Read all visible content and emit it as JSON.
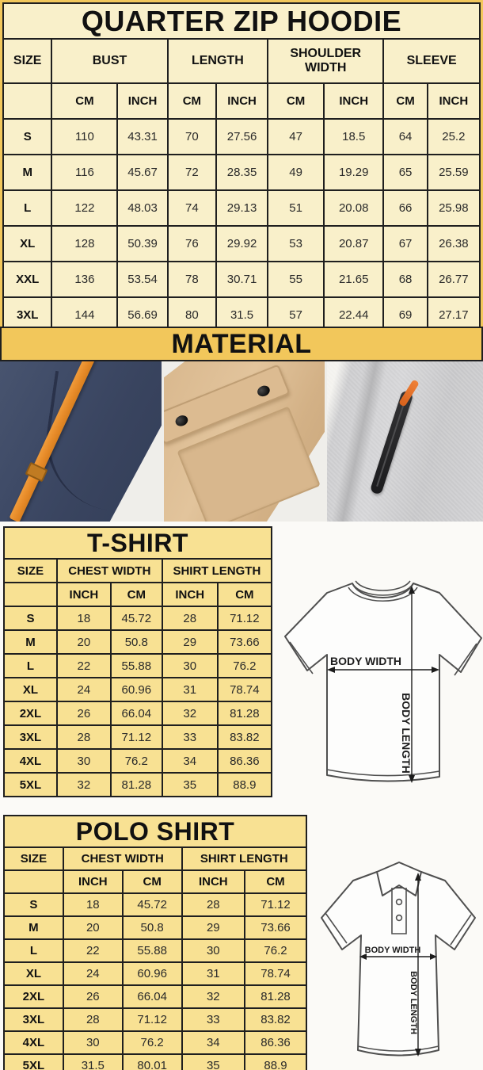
{
  "colors": {
    "gold": "#f2c75b",
    "cream": "#f9f0ca",
    "soft_yellow": "#f8e193",
    "border": "#1f1f1f",
    "text": "#1a1a1a"
  },
  "hoodie_chart": {
    "type": "table",
    "title": "QUARTER ZIP HOODIE",
    "size_header": "SIZE",
    "groups": [
      "BUST",
      "LENGTH",
      "SHOULDER WIDTH",
      "SLEEVE"
    ],
    "units": [
      "CM",
      "INCH",
      "CM",
      "INCH",
      "CM",
      "INCH",
      "CM",
      "INCH"
    ],
    "rows": [
      [
        "S",
        "110",
        "43.31",
        "70",
        "27.56",
        "47",
        "18.5",
        "64",
        "25.2"
      ],
      [
        "M",
        "116",
        "45.67",
        "72",
        "28.35",
        "49",
        "19.29",
        "65",
        "25.59"
      ],
      [
        "L",
        "122",
        "48.03",
        "74",
        "29.13",
        "51",
        "20.08",
        "66",
        "25.98"
      ],
      [
        "XL",
        "128",
        "50.39",
        "76",
        "29.92",
        "53",
        "20.87",
        "67",
        "26.38"
      ],
      [
        "XXL",
        "136",
        "53.54",
        "78",
        "30.71",
        "55",
        "21.65",
        "68",
        "26.77"
      ],
      [
        "3XL",
        "144",
        "56.69",
        "80",
        "31.5",
        "57",
        "22.44",
        "69",
        "27.17"
      ]
    ]
  },
  "material": {
    "title": "MATERIAL",
    "photos": [
      {
        "name": "navy-fleece-with-orange-drawstring"
      },
      {
        "name": "khaki-pocket-with-snap-buttons"
      },
      {
        "name": "gray-fleece-with-zipper"
      }
    ]
  },
  "tshirt_chart": {
    "type": "table",
    "title": "T-SHIRT",
    "size_header": "SIZE",
    "groups": [
      "CHEST WIDTH",
      "SHIRT LENGTH"
    ],
    "units": [
      "INCH",
      "CM",
      "INCH",
      "CM"
    ],
    "rows": [
      [
        "S",
        "18",
        "45.72",
        "28",
        "71.12"
      ],
      [
        "M",
        "20",
        "50.8",
        "29",
        "73.66"
      ],
      [
        "L",
        "22",
        "55.88",
        "30",
        "76.2"
      ],
      [
        "XL",
        "24",
        "60.96",
        "31",
        "78.74"
      ],
      [
        "2XL",
        "26",
        "66.04",
        "32",
        "81.28"
      ],
      [
        "3XL",
        "28",
        "71.12",
        "33",
        "83.82"
      ],
      [
        "4XL",
        "30",
        "76.2",
        "34",
        "86.36"
      ],
      [
        "5XL",
        "32",
        "81.28",
        "35",
        "88.9"
      ]
    ],
    "diagram": {
      "width_label": "BODY WIDTH",
      "length_label": "BODY LENGTH"
    }
  },
  "polo_chart": {
    "type": "table",
    "title": "POLO SHIRT",
    "size_header": "SIZE",
    "groups": [
      "CHEST WIDTH",
      "SHIRT LENGTH"
    ],
    "units": [
      "INCH",
      "CM",
      "INCH",
      "CM"
    ],
    "rows": [
      [
        "S",
        "18",
        "45.72",
        "28",
        "71.12"
      ],
      [
        "M",
        "20",
        "50.8",
        "29",
        "73.66"
      ],
      [
        "L",
        "22",
        "55.88",
        "30",
        "76.2"
      ],
      [
        "XL",
        "24",
        "60.96",
        "31",
        "78.74"
      ],
      [
        "2XL",
        "26",
        "66.04",
        "32",
        "81.28"
      ],
      [
        "3XL",
        "28",
        "71.12",
        "33",
        "83.82"
      ],
      [
        "4XL",
        "30",
        "76.2",
        "34",
        "86.36"
      ],
      [
        "5XL",
        "31.5",
        "80.01",
        "35",
        "88.9"
      ]
    ],
    "diagram": {
      "width_label": "BODY WIDTH",
      "length_label": "BODY LENGTH"
    }
  }
}
